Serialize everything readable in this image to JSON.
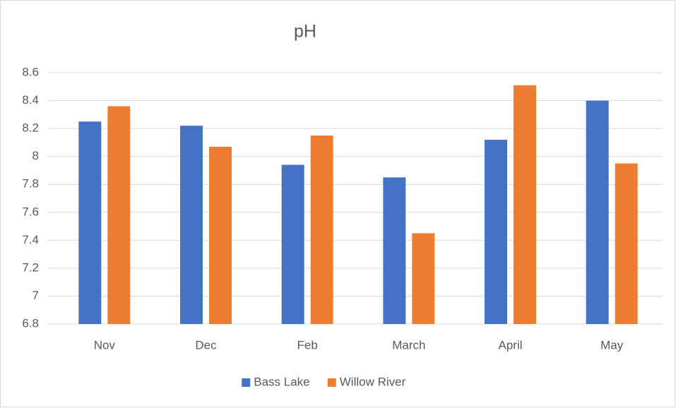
{
  "chart_data": {
    "type": "bar",
    "title": "pH",
    "categories": [
      "Nov",
      "Dec",
      "Feb",
      "March",
      "April",
      "May"
    ],
    "series": [
      {
        "name": "Bass Lake",
        "color": "#4472c4",
        "values": [
          8.25,
          8.22,
          7.94,
          7.85,
          8.12,
          8.4
        ]
      },
      {
        "name": "Willow River",
        "color": "#ed7d31",
        "values": [
          8.36,
          8.07,
          8.15,
          7.45,
          8.51,
          7.95
        ]
      }
    ],
    "ylim": [
      6.8,
      8.6
    ],
    "yticks": [
      6.8,
      7,
      7.2,
      7.4,
      7.6,
      7.8,
      8,
      8.2,
      8.4,
      8.6
    ],
    "grid": true,
    "legend": "bottom"
  }
}
